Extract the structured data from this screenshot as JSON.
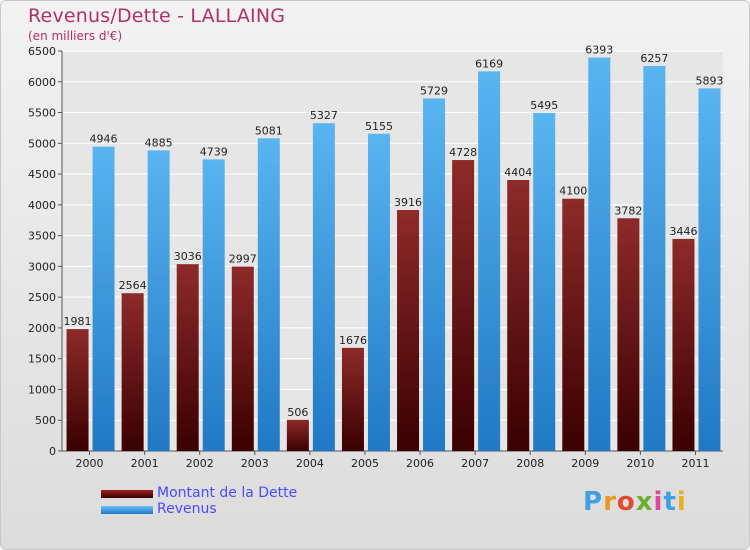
{
  "chart_data": {
    "type": "bar",
    "title": "Revenus/Dette - LALLAING",
    "subtitle": "(en milliers d'€)",
    "xlabel": "",
    "ylabel": "",
    "ylim": [
      0,
      6500
    ],
    "yticks": [
      0,
      500,
      1000,
      1500,
      2000,
      2500,
      3000,
      3500,
      4000,
      4500,
      5000,
      5500,
      6000,
      6500
    ],
    "grid": true,
    "categories": [
      "2000",
      "2001",
      "2002",
      "2003",
      "2004",
      "2005",
      "2006",
      "2007",
      "2008",
      "2009",
      "2010",
      "2011"
    ],
    "series": [
      {
        "name": "Montant de la Dette",
        "color": "#7a1010",
        "values": [
          1981,
          2564,
          3036,
          2997,
          506,
          1676,
          3916,
          4728,
          4404,
          4100,
          3782,
          3446
        ],
        "labels": [
          "1981",
          "2564",
          "3036",
          "2997",
          "506",
          "1676",
          "3916",
          "4728",
          "4404",
          "4100",
          "3782",
          "3446"
        ]
      },
      {
        "name": "Revenus",
        "color": "#3d9be4",
        "values": [
          4946,
          4885,
          4739,
          5081,
          5327,
          5155,
          5729,
          6169,
          5495,
          6393,
          6257,
          5893
        ],
        "labels": [
          "4946",
          "4885",
          "4739",
          "5081",
          "5327",
          "5155",
          "5729",
          "6169",
          "5495",
          "6393",
          "6257",
          "5893"
        ]
      }
    ],
    "legend_position": "bottom-left"
  },
  "logo": {
    "letters": [
      "P",
      "r",
      "o",
      "x",
      "i",
      "t",
      "i"
    ],
    "colors": [
      "#3da0e0",
      "#e89a20",
      "#e04a30",
      "#6ab030",
      "#d94b9a",
      "#3da0e0",
      "#e8b020"
    ]
  }
}
